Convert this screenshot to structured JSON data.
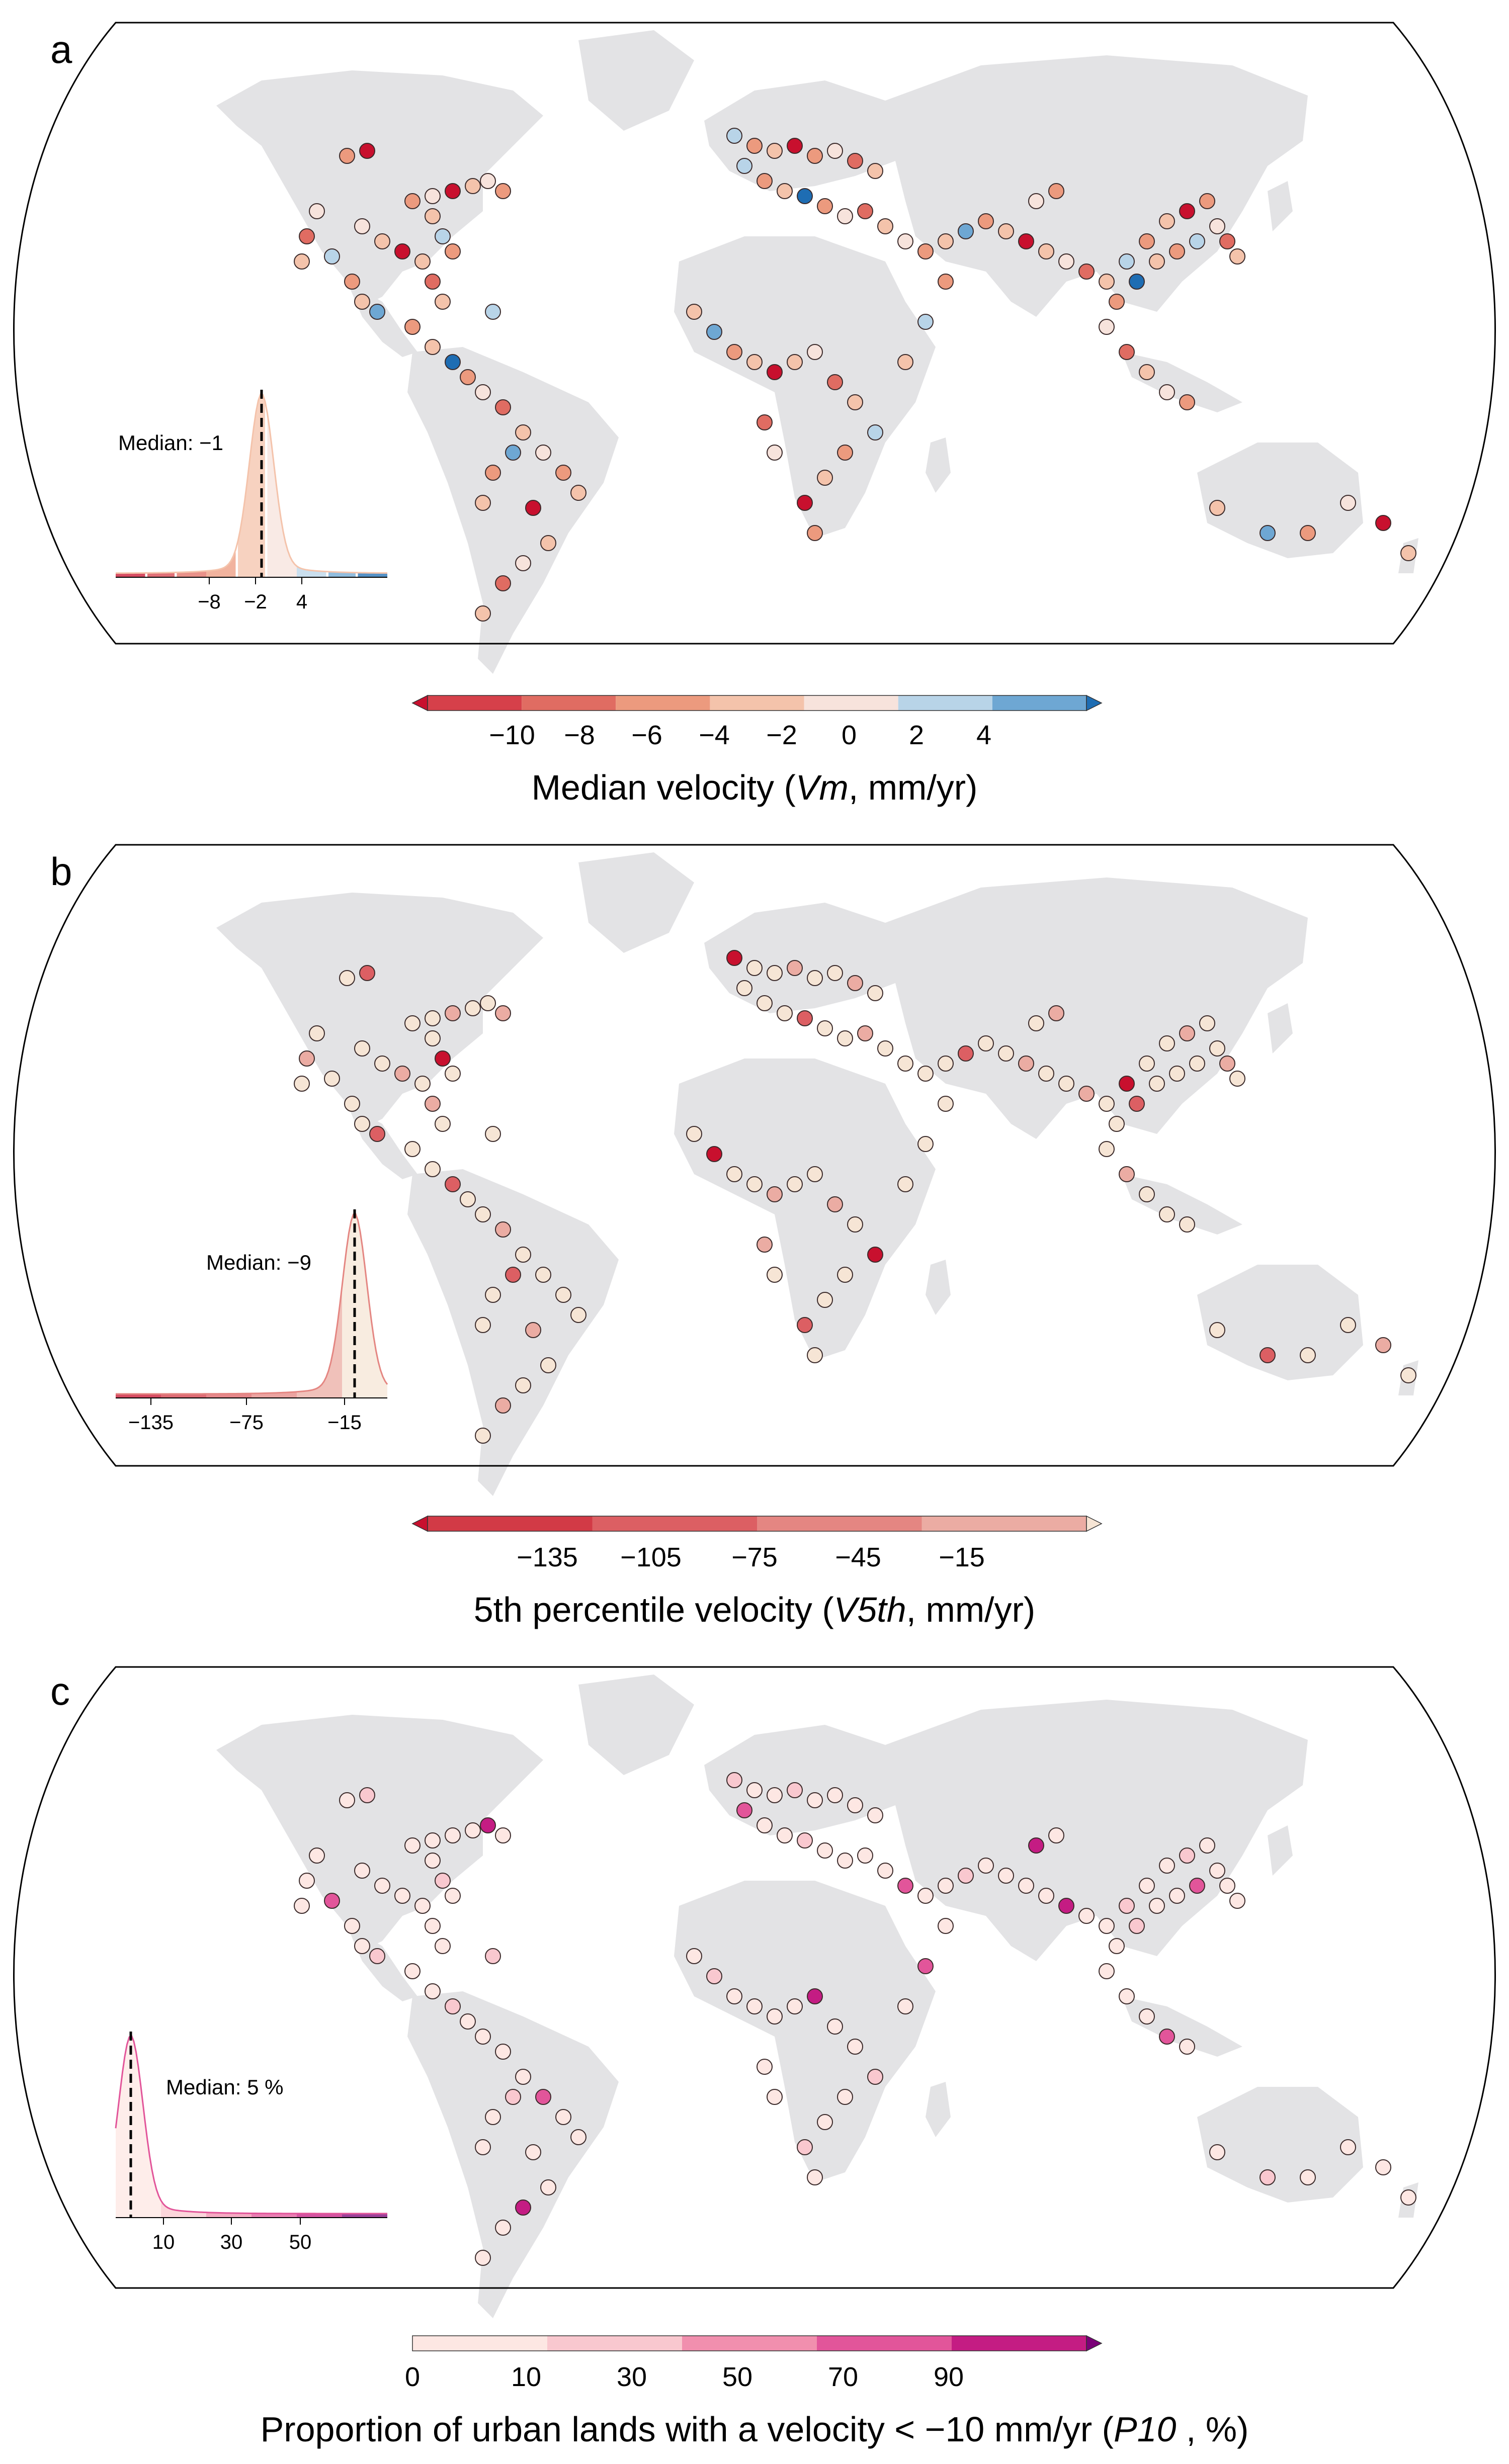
{
  "panels": [
    {
      "id": "a",
      "letter": "a",
      "inset_median_label": "Median: −1",
      "inset_ticks": [
        "−8",
        "−2",
        "4"
      ],
      "colorbar_ticks": [
        "−10",
        "−8",
        "−6",
        "−4",
        "−2",
        "0",
        "2",
        "4"
      ],
      "colorbar_title": "Median velocity (",
      "colorbar_symbol": "Vm",
      "colorbar_unit": ", mm/yr)",
      "colors": [
        "#c8102e",
        "#d6404a",
        "#e06c62",
        "#ec9a7e",
        "#f4c3ab",
        "#f7e3dc",
        "#b8d4e8",
        "#6ea7d3",
        "#1e6db3"
      ],
      "median": -1
    },
    {
      "id": "b",
      "letter": "b",
      "inset_median_label": "Median: −9",
      "inset_ticks": [
        "−135",
        "−75",
        "−15"
      ],
      "colorbar_ticks": [
        "−135",
        "−105",
        "−75",
        "−45",
        "−15"
      ],
      "colorbar_title": "5th percentile velocity (",
      "colorbar_symbol": "V5th",
      "colorbar_unit": ", mm/yr)",
      "colors": [
        "#c8102e",
        "#d23a46",
        "#dc5f63",
        "#e48682",
        "#ebaca3",
        "#f6e5d5"
      ],
      "median": -9
    },
    {
      "id": "c",
      "letter": "c",
      "inset_median_label": "Median: 5 %",
      "inset_ticks": [
        "10",
        "30",
        "50"
      ],
      "colorbar_ticks": [
        "0",
        "10",
        "30",
        "50",
        "70",
        "90"
      ],
      "colorbar_title": "Proportion of urban lands with a velocity < −10 mm/yr (",
      "colorbar_symbol": "P10",
      "colorbar_unit": " , %)",
      "colors": [
        "#fde7e3",
        "#f9c8cf",
        "#f18fae",
        "#e2559a",
        "#c41c83",
        "#7a0177"
      ],
      "median": 5
    }
  ]
}
